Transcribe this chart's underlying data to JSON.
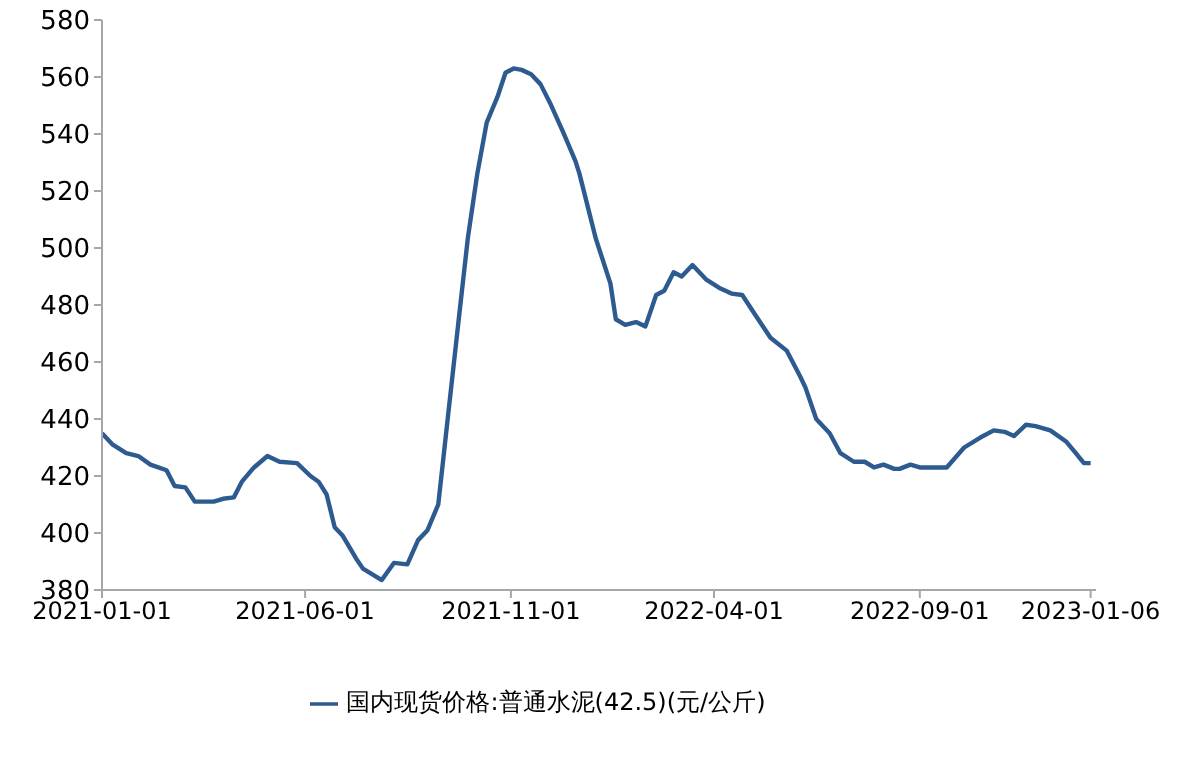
{
  "chart_data": {
    "type": "line",
    "legend": "bottom",
    "marker": "none",
    "line_style": "solid",
    "grid": false,
    "xlim": [
      "2021-01-01",
      "2023-01-10"
    ],
    "xticks": [
      "2021-01-01",
      "2021-06-01",
      "2021-11-01",
      "2022-04-01",
      "2022-09-01",
      "2023-01-06"
    ],
    "ylim": [
      380,
      580
    ],
    "yticks": [
      380,
      400,
      420,
      440,
      460,
      480,
      500,
      520,
      540,
      560,
      580
    ],
    "x": [
      "2021-01-01",
      "2021-01-09",
      "2021-01-19",
      "2021-01-28",
      "2021-02-06",
      "2021-02-18",
      "2021-02-24",
      "2021-03-04",
      "2021-03-11",
      "2021-03-25",
      "2021-04-01",
      "2021-04-09",
      "2021-04-15",
      "2021-04-24",
      "2021-05-04",
      "2021-05-13",
      "2021-05-26",
      "2021-06-05",
      "2021-06-11",
      "2021-06-17",
      "2021-06-23",
      "2021-06-29",
      "2021-07-09",
      "2021-07-14",
      "2021-07-28",
      "2021-08-06",
      "2021-08-16",
      "2021-08-24",
      "2021-08-31",
      "2021-09-08",
      "2021-09-15",
      "2021-09-23",
      "2021-09-30",
      "2021-10-07",
      "2021-10-14",
      "2021-10-22",
      "2021-10-28",
      "2021-11-03",
      "2021-11-09",
      "2021-11-16",
      "2021-11-23",
      "2021-11-30",
      "2021-12-10",
      "2021-12-19",
      "2021-12-22",
      "2022-01-03",
      "2022-01-14",
      "2022-01-18",
      "2022-01-25",
      "2022-02-02",
      "2022-02-09",
      "2022-02-17",
      "2022-02-23",
      "2022-03-02",
      "2022-03-08",
      "2022-03-16",
      "2022-03-26",
      "2022-04-05",
      "2022-04-14",
      "2022-04-22",
      "2022-05-01",
      "2022-05-13",
      "2022-05-25",
      "2022-06-04",
      "2022-06-08",
      "2022-06-16",
      "2022-06-26",
      "2022-07-04",
      "2022-07-14",
      "2022-07-22",
      "2022-07-29",
      "2022-08-05",
      "2022-08-13",
      "2022-08-17",
      "2022-08-25",
      "2022-09-01",
      "2022-09-21",
      "2022-10-04",
      "2022-10-16",
      "2022-10-26",
      "2022-11-03",
      "2022-11-10",
      "2022-11-19",
      "2022-11-26",
      "2022-12-07",
      "2022-12-19",
      "2022-12-26",
      "2023-01-01",
      "2023-01-06"
    ],
    "series": [
      {
        "name": "国内现货价格:普通水泥(42.5)(元/公斤)",
        "color": "#2e5b8f",
        "values": [
          435,
          431,
          428,
          427,
          424,
          422,
          416.5,
          416,
          411,
          411,
          412,
          412.5,
          418,
          423,
          427,
          425,
          424.5,
          420,
          418,
          413.5,
          402,
          399,
          391,
          387.5,
          383.5,
          389.5,
          389,
          397.5,
          401,
          410,
          440,
          474,
          503.5,
          526,
          544,
          553,
          561.5,
          563,
          562.5,
          561,
          557.5,
          551,
          540.5,
          530.5,
          526,
          503.5,
          487.5,
          475,
          473,
          474,
          472.5,
          483.5,
          485,
          491.5,
          490,
          494,
          489,
          486,
          484,
          483.5,
          477,
          468.5,
          464,
          455,
          451,
          440,
          435,
          428,
          425,
          425,
          423,
          424,
          422.5,
          422.5,
          424,
          423,
          423,
          430,
          433.5,
          436,
          435.5,
          434,
          438,
          437.5,
          436,
          432,
          428,
          424.5,
          424.5
        ]
      }
    ]
  }
}
